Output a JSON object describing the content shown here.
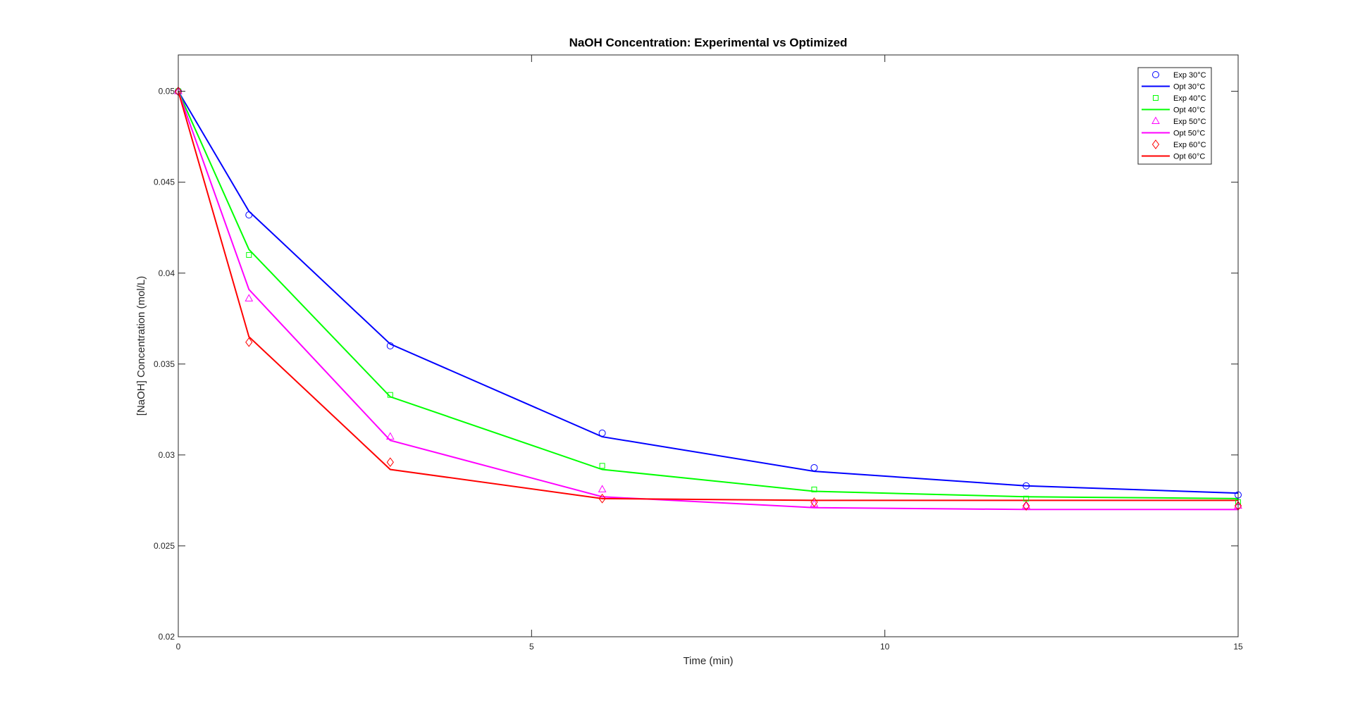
{
  "chart_data": {
    "type": "line",
    "title": "NaOH Concentration: Experimental vs Optimized",
    "xlabel": "Time (min)",
    "ylabel": "[NaOH] Concentration (mol/L)",
    "xlim": [
      0,
      15
    ],
    "ylim": [
      0.02,
      0.052
    ],
    "xticks": [
      0,
      5,
      10,
      15
    ],
    "xtick_labels": [
      "0",
      "5",
      "10",
      "15"
    ],
    "yticks": [
      0.02,
      0.025,
      0.03,
      0.035,
      0.04,
      0.045,
      0.05
    ],
    "ytick_labels": [
      "0.02",
      "0.025",
      "0.03",
      "0.035",
      "0.04",
      "0.045",
      "0.05"
    ],
    "grid": false,
    "legend_position": "top-right",
    "x": [
      0,
      1,
      3,
      6,
      9,
      12,
      15
    ],
    "series": [
      {
        "name": "Exp 30°C",
        "kind": "markers",
        "marker": "circle",
        "color": "#0000ff",
        "values": [
          0.05,
          0.0432,
          0.036,
          0.0312,
          0.0293,
          0.0283,
          0.0278
        ]
      },
      {
        "name": "Opt 30°C",
        "kind": "line",
        "color": "#0000ff",
        "values": [
          0.05,
          0.0434,
          0.0361,
          0.031,
          0.0291,
          0.0283,
          0.0279
        ]
      },
      {
        "name": "Exp 40°C",
        "kind": "markers",
        "marker": "square",
        "color": "#00ff00",
        "values": [
          0.05,
          0.041,
          0.0333,
          0.0294,
          0.0281,
          0.0276,
          0.0274
        ]
      },
      {
        "name": "Opt 40°C",
        "kind": "line",
        "color": "#00ff00",
        "values": [
          0.05,
          0.0413,
          0.0332,
          0.0292,
          0.028,
          0.0277,
          0.0276
        ]
      },
      {
        "name": "Exp 50°C",
        "kind": "markers",
        "marker": "triangle",
        "color": "#ff00ff",
        "values": [
          0.05,
          0.0386,
          0.031,
          0.0281,
          0.0273,
          0.0272,
          0.0272
        ]
      },
      {
        "name": "Opt 50°C",
        "kind": "line",
        "color": "#ff00ff",
        "values": [
          0.05,
          0.0391,
          0.0308,
          0.0277,
          0.0271,
          0.027,
          0.027
        ]
      },
      {
        "name": "Exp 60°C",
        "kind": "markers",
        "marker": "diamond",
        "color": "#ff0000",
        "values": [
          0.05,
          0.0362,
          0.0296,
          0.0276,
          0.0274,
          0.0272,
          0.0272
        ]
      },
      {
        "name": "Opt 60°C",
        "kind": "line",
        "color": "#ff0000",
        "values": [
          0.05,
          0.0365,
          0.0292,
          0.0276,
          0.0275,
          0.0275,
          0.0275
        ]
      }
    ]
  }
}
